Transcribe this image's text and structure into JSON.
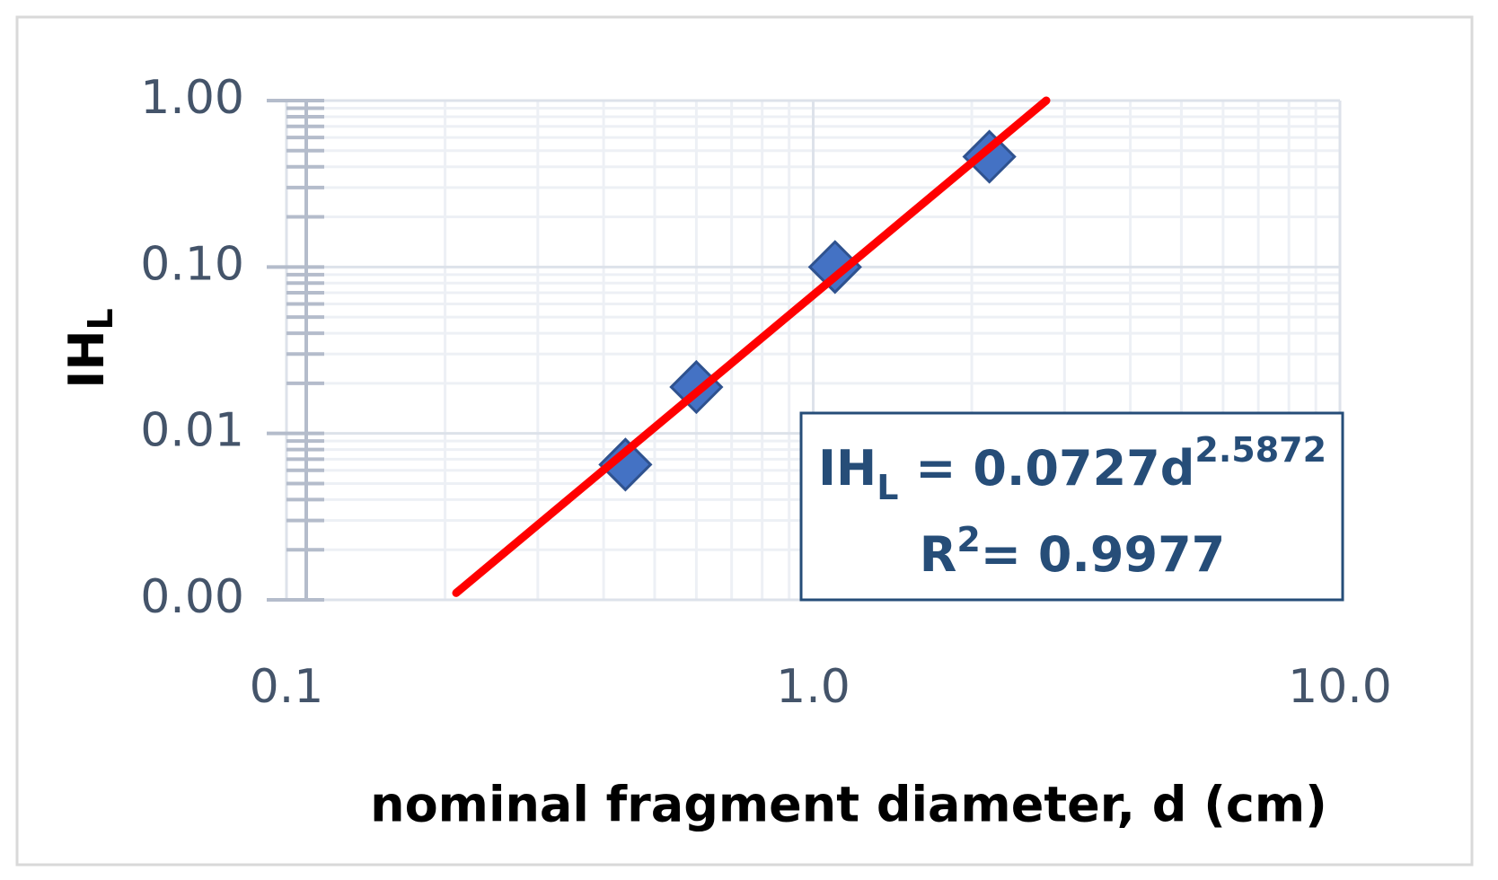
{
  "chart_data": {
    "type": "scatter",
    "x_label": "nominal fragment diameter, d (cm)",
    "y_label": [
      "IH",
      "L"
    ],
    "x": [
      0.44,
      0.6,
      1.1,
      2.16
    ],
    "series": [
      {
        "color": "#4472c4",
        "values": [
          0.0065,
          0.019,
          0.1,
          0.46
        ]
      }
    ],
    "trendline": {
      "color": "#ff0000",
      "x": [
        0.21,
        2.77
      ],
      "y": [
        0.0011,
        1.0
      ]
    },
    "annotation": {
      "equation": [
        "IH",
        "L",
        " = 0.0727d",
        "2.5872"
      ],
      "r2": [
        "R",
        "2",
        "= 0.9977"
      ]
    },
    "xscale": "log",
    "yscale": "log",
    "xlim": [
      0.1,
      10
    ],
    "xticks": [
      {
        "value": 0.1,
        "label": "0.1"
      },
      {
        "value": 1,
        "label": "1.0"
      },
      {
        "value": 10,
        "label": "10.0"
      }
    ],
    "ylim": [
      0.001,
      1
    ],
    "yticks": [
      {
        "value": 1,
        "label": "1.00"
      },
      {
        "value": 0.1,
        "label": "0.10"
      },
      {
        "value": 0.01,
        "label": "0.01"
      },
      {
        "value": 0.001,
        "label": "0.00"
      }
    ],
    "grid": true
  }
}
